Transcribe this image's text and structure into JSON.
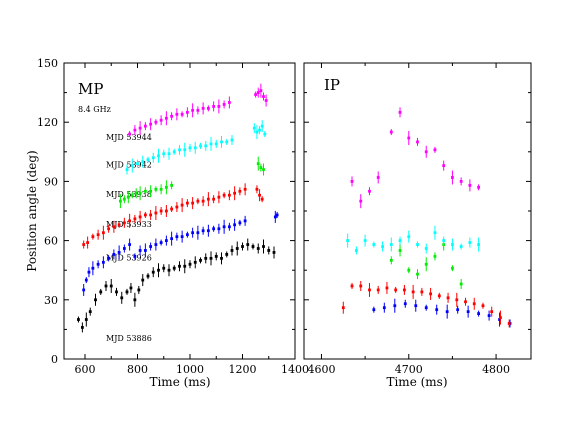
{
  "chart_data": [
    {
      "type": "scatter",
      "panel_label": "MP",
      "note": "8.4 GHz",
      "xlabel": "Time (ms)",
      "ylabel": "Position angle (deg)",
      "xlim": [
        520,
        1400
      ],
      "ylim": [
        0,
        150
      ],
      "x_ticks": [
        600,
        800,
        1000,
        1200,
        1400
      ],
      "y_ticks": [
        0,
        30,
        60,
        90,
        120,
        150
      ],
      "annotations": [
        {
          "text": "MJD 53944",
          "x": 680,
          "y": 111
        },
        {
          "text": "MJD 53942",
          "x": 680,
          "y": 97
        },
        {
          "text": "MJD 53938",
          "x": 680,
          "y": 82
        },
        {
          "text": "MJD 53933",
          "x": 680,
          "y": 67
        },
        {
          "text": "MJD 53926",
          "x": 680,
          "y": 50
        },
        {
          "text": "MJD 53886",
          "x": 680,
          "y": 9
        }
      ],
      "series": [
        {
          "color": "#000000",
          "segments": [
            {
              "x": [
                575,
                590,
                605,
                620,
                640,
                660,
                680,
                700,
                720,
                740,
                760,
                775,
                790,
                805,
                820,
                840,
                860,
                880,
                900,
                920,
                940,
                960,
                980,
                1000,
                1020,
                1040,
                1060,
                1080,
                1100,
                1120,
                1140,
                1160,
                1180,
                1200,
                1220,
                1240,
                1260,
                1280,
                1300,
                1320
              ],
              "y": [
                20,
                16,
                20,
                24,
                30,
                34,
                37,
                37,
                34,
                31,
                34,
                36,
                30,
                35,
                40,
                42,
                44,
                45,
                46,
                45,
                46,
                47,
                47,
                48,
                49,
                50,
                51,
                51,
                52,
                51,
                53,
                55,
                56,
                57,
                58,
                57,
                56,
                57,
                55,
                54
              ]
            }
          ]
        },
        {
          "color": "#0000ff",
          "segments": [
            {
              "x": [
                595,
                605,
                615,
                630,
                650,
                670,
                690,
                710,
                730,
                750,
                770,
                790,
                810,
                830,
                850,
                870,
                890,
                910,
                930,
                950,
                970,
                990,
                1010,
                1030,
                1050,
                1070,
                1090,
                1110,
                1130,
                1150,
                1170,
                1190,
                1210
              ],
              "y": [
                35,
                40,
                44,
                46,
                48,
                49,
                51,
                53,
                54,
                56,
                58,
                52,
                55,
                55,
                57,
                58,
                59,
                60,
                61,
                62,
                62,
                63,
                64,
                64,
                65,
                65,
                66,
                66,
                67,
                67,
                68,
                69,
                70
              ]
            },
            {
              "x": [
                1325,
                1332
              ],
              "y": [
                72,
                73
              ]
            }
          ]
        },
        {
          "color": "#ff0000",
          "segments": [
            {
              "x": [
                595,
                610,
                630,
                650,
                670,
                690,
                710,
                730,
                750,
                770,
                790,
                810,
                830,
                850,
                870,
                890,
                910,
                930,
                950,
                970,
                990,
                1010,
                1030,
                1050,
                1070,
                1090,
                1110,
                1130,
                1150,
                1170,
                1190,
                1210
              ],
              "y": [
                58,
                59,
                62,
                63,
                64,
                66,
                67,
                68,
                69,
                70,
                71,
                72,
                73,
                73,
                74,
                75,
                75,
                76,
                77,
                78,
                79,
                79,
                80,
                80,
                81,
                81,
                82,
                83,
                83,
                84,
                85,
                86
              ]
            },
            {
              "x": [
                1255,
                1265,
                1275
              ],
              "y": [
                86,
                83,
                81
              ]
            }
          ]
        },
        {
          "color": "#00ee00",
          "segments": [
            {
              "x": [
                735,
                750,
                765,
                780,
                795,
                810,
                830,
                850,
                870,
                890,
                910,
                930
              ],
              "y": [
                80,
                81,
                82,
                83,
                84,
                84,
                85,
                85,
                86,
                86,
                87,
                88
              ]
            },
            {
              "x": [
                1260,
                1270,
                1280
              ],
              "y": [
                99,
                97,
                96
              ]
            }
          ]
        },
        {
          "color": "#00ffff",
          "segments": [
            {
              "x": [
                760,
                780,
                800,
                820,
                840,
                860,
                880,
                900,
                920,
                940,
                960,
                980,
                1000,
                1020,
                1040,
                1060,
                1080,
                1100,
                1120,
                1140,
                1160
              ],
              "y": [
                96,
                98,
                99,
                100,
                101,
                102,
                103,
                104,
                104,
                105,
                106,
                106,
                107,
                107,
                108,
                108,
                109,
                109,
                110,
                110,
                111
              ]
            },
            {
              "x": [
                1245,
                1255,
                1265,
                1275,
                1285
              ],
              "y": [
                117,
                115,
                116,
                118,
                114
              ]
            }
          ]
        },
        {
          "color": "#ff00ff",
          "segments": [
            {
              "x": [
                770,
                790,
                810,
                830,
                850,
                870,
                890,
                910,
                930,
                950,
                970,
                990,
                1010,
                1030,
                1050,
                1070,
                1090,
                1110,
                1130,
                1150
              ],
              "y": [
                114,
                116,
                117,
                118,
                119,
                120,
                121,
                122,
                123,
                124,
                124,
                125,
                126,
                126,
                127,
                127,
                128,
                128,
                129,
                130
              ]
            },
            {
              "x": [
                1250,
                1260,
                1270,
                1280,
                1290
              ],
              "y": [
                134,
                135,
                136,
                133,
                131
              ]
            }
          ]
        }
      ]
    },
    {
      "type": "scatter",
      "panel_label": "IP",
      "xlabel": "Time (ms)",
      "xlim": [
        4580,
        4840
      ],
      "ylim": [
        0,
        150
      ],
      "x_ticks": [
        4600,
        4700,
        4800
      ],
      "series": [
        {
          "color": "#0000ff",
          "x": [
            4660,
            4672,
            4684,
            4696,
            4708,
            4720,
            4732,
            4744,
            4756,
            4768,
            4780,
            4792,
            4804,
            4816
          ],
          "y": [
            25,
            26,
            27,
            28,
            27,
            26,
            25,
            24,
            25,
            24,
            23,
            22,
            20,
            18
          ]
        },
        {
          "color": "#ff0000",
          "x": [
            4625,
            4635,
            4645,
            4655,
            4665,
            4675,
            4685,
            4695,
            4705,
            4715,
            4725,
            4735,
            4745,
            4755,
            4765,
            4775,
            4785,
            4795,
            4805,
            4815
          ],
          "y": [
            26,
            37,
            37,
            35,
            35,
            36,
            35,
            35,
            34,
            34,
            33,
            32,
            31,
            30,
            29,
            28,
            27,
            24,
            21,
            18
          ]
        },
        {
          "color": "#00ee00",
          "x": [
            4680,
            4690,
            4700,
            4710,
            4720,
            4730,
            4740,
            4750,
            4760
          ],
          "y": [
            50,
            55,
            45,
            43,
            48,
            52,
            58,
            46,
            38
          ]
        },
        {
          "color": "#00ffff",
          "x": [
            4630,
            4640,
            4650,
            4660,
            4670,
            4680,
            4690,
            4700,
            4710,
            4720,
            4730,
            4740,
            4750,
            4760,
            4770,
            4780
          ],
          "y": [
            60,
            55,
            60,
            58,
            57,
            58,
            60,
            62,
            58,
            56,
            64,
            60,
            58,
            57,
            59,
            58
          ]
        },
        {
          "color": "#ff00ff",
          "x": [
            4635,
            4645,
            4655,
            4665,
            4680,
            4690,
            4700,
            4710,
            4720,
            4730,
            4740,
            4750,
            4760,
            4770,
            4780
          ],
          "y": [
            90,
            80,
            85,
            92,
            115,
            125,
            112,
            110,
            105,
            106,
            98,
            92,
            90,
            88,
            87
          ]
        }
      ]
    }
  ]
}
